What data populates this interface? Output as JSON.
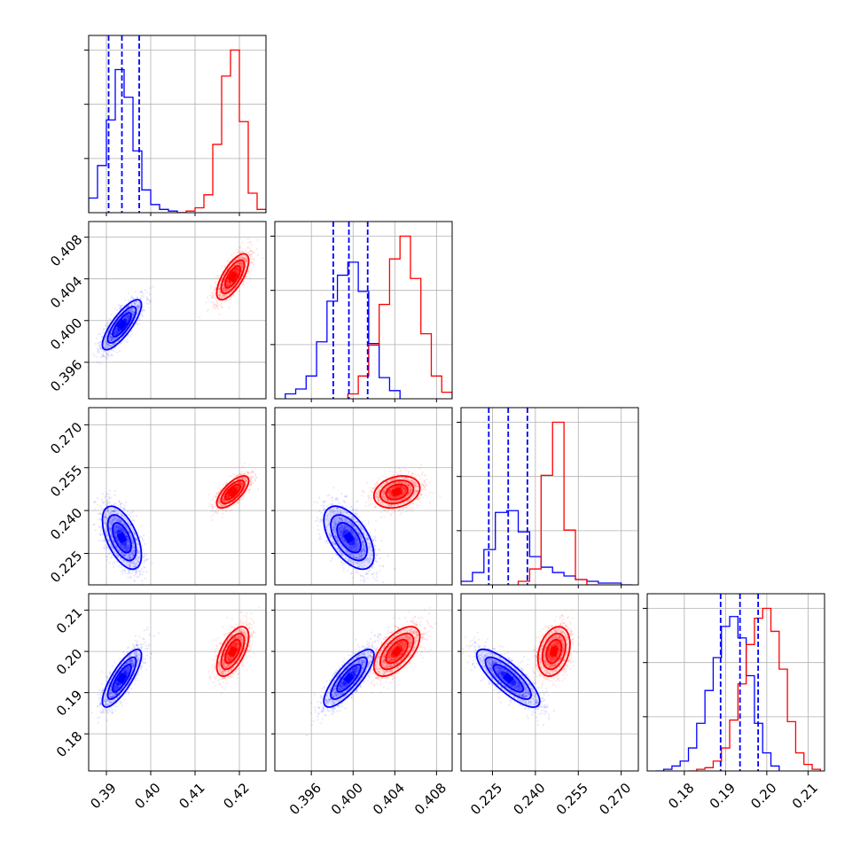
{
  "colors": {
    "series_a": "#0000ff",
    "series_b": "#ff0000",
    "grid": "#b0b0b0",
    "frame": "#000000"
  },
  "chart_data": {
    "type": "corner",
    "title": "",
    "grid": true,
    "parameters": [
      {
        "range": [
          0.386,
          0.426
        ],
        "ticks": [
          0.39,
          0.4,
          0.41,
          0.42
        ],
        "tick_labels": [
          "0.39",
          "0.40",
          "0.41",
          "0.42"
        ]
      },
      {
        "range": [
          0.3925,
          0.4095
        ],
        "ticks": [
          0.396,
          0.4,
          0.404,
          0.408
        ],
        "tick_labels": [
          "0.396",
          "0.400",
          "0.404",
          "0.408"
        ]
      },
      {
        "range": [
          0.214,
          0.276
        ],
        "ticks": [
          0.225,
          0.24,
          0.255,
          0.27
        ],
        "tick_labels": [
          "0.225",
          "0.240",
          "0.255",
          "0.270"
        ]
      },
      {
        "range": [
          0.171,
          0.214
        ],
        "ticks": [
          0.18,
          0.19,
          0.2,
          0.21
        ],
        "tick_labels": [
          "0.18",
          "0.19",
          "0.20",
          "0.21"
        ]
      }
    ],
    "series": [
      {
        "color": "#0000ff",
        "mean": [
          0.3935,
          0.3996,
          0.2305,
          0.1935
        ],
        "std": [
          0.0022,
          0.0012,
          0.0055,
          0.0035
        ],
        "corr": [
          [
            1.0,
            0.8,
            -0.55,
            0.8
          ],
          [
            0.8,
            1.0,
            -0.55,
            0.8
          ],
          [
            -0.55,
            -0.55,
            1.0,
            -0.8
          ],
          [
            0.8,
            0.8,
            -0.8,
            1.0
          ]
        ],
        "quantiles": [
          [
            0.3905,
            0.3935,
            0.3974
          ],
          [
            0.3981,
            0.3996,
            0.4014
          ],
          [
            0.2237,
            0.2305,
            0.2372
          ],
          [
            0.1888,
            0.1935,
            0.1979
          ]
        ]
      },
      {
        "color": "#ff0000",
        "mean": [
          0.4185,
          0.4042,
          0.2465,
          0.2
        ],
        "std": [
          0.0018,
          0.0011,
          0.0028,
          0.003
        ],
        "corr": [
          [
            1.0,
            0.7,
            0.7,
            0.6
          ],
          [
            0.7,
            1.0,
            0.25,
            0.6
          ],
          [
            0.7,
            0.25,
            1.0,
            0.3
          ],
          [
            0.6,
            0.6,
            0.3,
            1.0
          ]
        ],
        "quantiles": []
      }
    ],
    "histograms": [
      {
        "param": 0,
        "series": [
          {
            "color": "#0000ff",
            "edges": [
              0.386,
              0.388,
              0.39,
              0.392,
              0.394,
              0.396,
              0.398,
              0.4,
              0.402,
              0.404,
              0.406,
              0.408
            ],
            "counts": [
              9,
              29,
              57,
              88,
              71,
              38,
              14,
              5,
              2,
              1,
              0
            ]
          },
          {
            "color": "#ff0000",
            "edges": [
              0.406,
              0.408,
              0.41,
              0.412,
              0.414,
              0.416,
              0.418,
              0.42,
              0.422,
              0.424,
              0.426
            ],
            "counts": [
              0,
              1,
              3,
              11,
              42,
              84,
              100,
              56,
              12,
              2
            ]
          }
        ]
      },
      {
        "param": 1,
        "series": [
          {
            "color": "#0000ff",
            "edges": [
              0.3935,
              0.3945,
              0.3955,
              0.3965,
              0.3975,
              0.3985,
              0.3995,
              0.4005,
              0.4015,
              0.4025,
              0.4035,
              0.4045
            ],
            "counts": [
              3,
              6,
              14,
              35,
              60,
              76,
              84,
              66,
              34,
              13,
              5
            ]
          },
          {
            "color": "#ff0000",
            "edges": [
              0.3995,
              0.4005,
              0.4015,
              0.4025,
              0.4035,
              0.4045,
              0.4055,
              0.4065,
              0.4075,
              0.4085,
              0.4095
            ],
            "counts": [
              3,
              14,
              33,
              58,
              86,
              100,
              74,
              40,
              14,
              4
            ]
          }
        ]
      },
      {
        "param": 2,
        "series": [
          {
            "color": "#0000ff",
            "edges": [
              0.214,
              0.218,
              0.222,
              0.226,
              0.23,
              0.234,
              0.238,
              0.242,
              0.246,
              0.25,
              0.254,
              0.258,
              0.262,
              0.266,
              0.27,
              0.274
            ],
            "counts": [
              2,
              7,
              20,
              41,
              42,
              30,
              16,
              10,
              7,
              5,
              3,
              2,
              1,
              1,
              0
            ]
          },
          {
            "color": "#ff0000",
            "edges": [
              0.234,
              0.238,
              0.242,
              0.246,
              0.25,
              0.254,
              0.258,
              0.262
            ],
            "counts": [
              2,
              9,
              62,
              92,
              31,
              3,
              0
            ]
          }
        ]
      },
      {
        "param": 3,
        "series": [
          {
            "color": "#0000ff",
            "edges": [
              0.173,
              0.175,
              0.177,
              0.179,
              0.181,
              0.183,
              0.185,
              0.187,
              0.189,
              0.191,
              0.193,
              0.195,
              0.197,
              0.199,
              0.201,
              0.203
            ],
            "counts": [
              0,
              1,
              3,
              6,
              14,
              29,
              49,
              69,
              88,
              94,
              81,
              58,
              29,
              11,
              3
            ]
          },
          {
            "color": "#ff0000",
            "edges": [
              0.181,
              0.183,
              0.185,
              0.187,
              0.189,
              0.191,
              0.193,
              0.195,
              0.197,
              0.199,
              0.201,
              0.203,
              0.205,
              0.207,
              0.209,
              0.211,
              0.213
            ],
            "counts": [
              0,
              1,
              2,
              6,
              14,
              31,
              53,
              77,
              93,
              99,
              85,
              62,
              30,
              11,
              4,
              1
            ]
          }
        ]
      }
    ]
  }
}
